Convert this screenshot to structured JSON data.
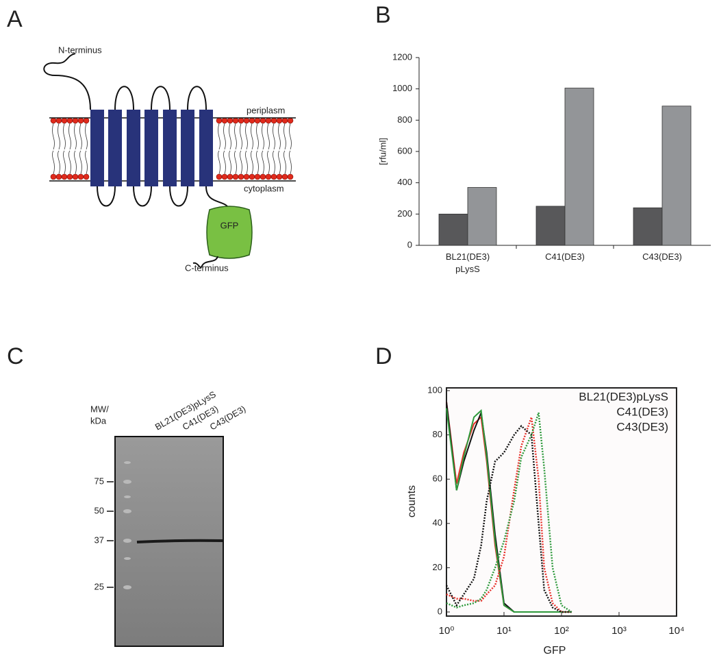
{
  "panel_labels": [
    "A",
    "B",
    "C",
    "D"
  ],
  "panel_a": {
    "n_terminus": "N-terminus",
    "periplasm": "periplasm",
    "cytoplasm": "cytoplasm",
    "gfp": "GFP",
    "c_terminus": "C-terminus"
  },
  "panel_c": {
    "mw_label": [
      "MW/",
      "kDa"
    ],
    "lanes": [
      "BL21(DE3)pLysS",
      "C41(DE3)",
      "C43(DE3)"
    ],
    "markers": [
      "75",
      "50",
      "37",
      "25"
    ]
  },
  "chart_data": [
    {
      "type": "bar",
      "y_label": "[rfu/ml]",
      "categories": [
        "BL21(DE3) pLysS",
        "C41(DE3)",
        "C43(DE3)"
      ],
      "series": [
        {
          "color": "#58585a",
          "values": [
            200,
            250,
            240
          ]
        },
        {
          "color": "#939598",
          "values": [
            370,
            1005,
            890
          ]
        }
      ],
      "ylim": [
        0,
        1200
      ],
      "yticks": [
        0,
        200,
        400,
        600,
        800,
        1000,
        1200
      ]
    },
    {
      "type": "line",
      "x_label": "GFP",
      "y_label": "counts",
      "log_x": true,
      "legend": "upper right",
      "x": [
        1,
        1.5,
        2,
        3,
        4,
        5,
        7,
        10,
        15,
        20,
        30,
        40,
        50,
        70,
        100,
        150
      ],
      "series": [
        {
          "name": "BL21(DE3)pLysS",
          "color": "#e8312b",
          "style": "solid",
          "values": [
            95,
            58,
            72,
            85,
            88,
            68,
            30,
            3,
            0,
            0,
            0,
            0,
            0,
            0,
            0,
            0
          ]
        },
        {
          "name": "C41(DE3)",
          "color": "#111111",
          "style": "solid",
          "values": [
            95,
            55,
            68,
            82,
            90,
            72,
            35,
            4,
            0,
            0,
            0,
            0,
            0,
            0,
            0,
            0
          ]
        },
        {
          "name": "C43(DE3)",
          "color": "#2e9a3c",
          "style": "solid",
          "values": [
            92,
            55,
            70,
            88,
            91,
            70,
            32,
            3,
            0,
            0,
            0,
            0,
            0,
            0,
            0,
            0
          ]
        },
        {
          "color": "#e8312b",
          "style": "dotted",
          "values": [
            8,
            6,
            6,
            5,
            5,
            8,
            12,
            25,
            55,
            75,
            88,
            60,
            20,
            4,
            0,
            0
          ]
        },
        {
          "color": "#111111",
          "style": "dotted",
          "values": [
            12,
            3,
            8,
            15,
            30,
            50,
            68,
            72,
            80,
            84,
            80,
            40,
            10,
            2,
            0,
            0
          ]
        },
        {
          "color": "#2e9a3c",
          "style": "dotted",
          "values": [
            4,
            2,
            3,
            4,
            6,
            10,
            20,
            32,
            50,
            70,
            80,
            90,
            65,
            20,
            3,
            0
          ]
        }
      ],
      "xlim": [
        1,
        10000
      ],
      "xticks": [
        {
          "value": 1,
          "label": "10⁰"
        },
        {
          "value": 10,
          "label": "10¹"
        },
        {
          "value": 100,
          "label": "10²"
        },
        {
          "value": 1000,
          "label": "10³"
        },
        {
          "value": 10000,
          "label": "10⁴"
        }
      ],
      "ylim": [
        0,
        100
      ],
      "yticks": [
        0,
        20,
        40,
        60,
        80,
        100
      ]
    }
  ]
}
